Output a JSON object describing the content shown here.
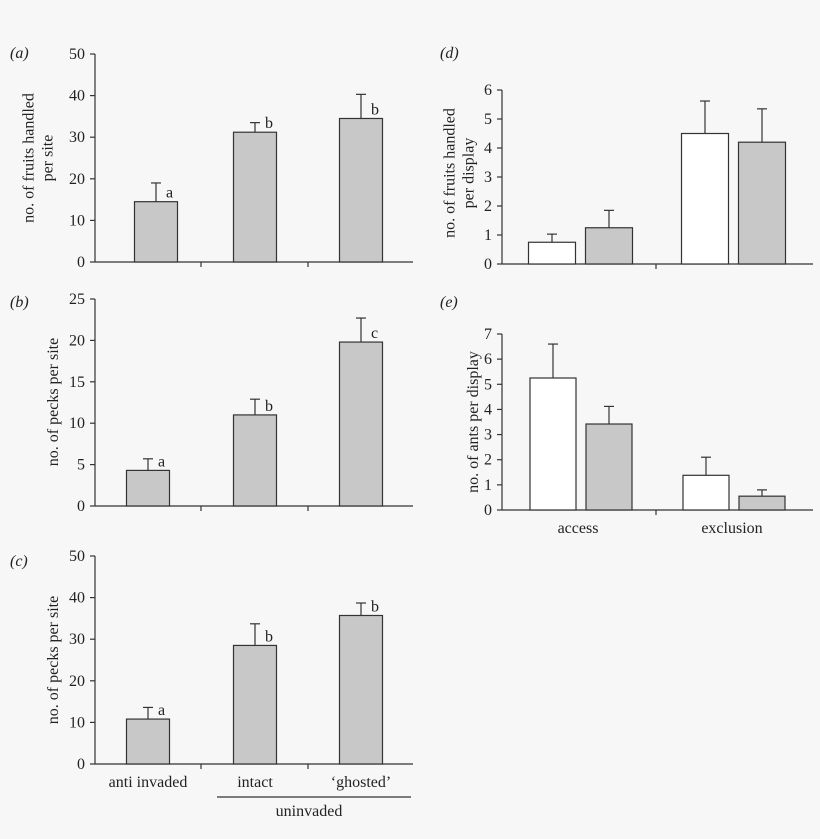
{
  "chart_data": [
    {
      "panel": "(a)",
      "type": "bar",
      "ylabel_lines": [
        "no. of fruits handled",
        "per site"
      ],
      "ylim": [
        0,
        50
      ],
      "yticks": [
        0,
        10,
        20,
        30,
        40,
        50
      ],
      "categories": [
        "anti invaded",
        "intact",
        "‘ghosted’"
      ],
      "series": [
        {
          "name": "sites",
          "fill": "#c8c8c8",
          "values": [
            14.5,
            31.2,
            34.5
          ],
          "errors": [
            4.5,
            2.3,
            5.8
          ],
          "letters": [
            "a",
            "b",
            "b"
          ]
        }
      ]
    },
    {
      "panel": "(b)",
      "type": "bar",
      "ylabel_lines": [
        "no. of pecks per site"
      ],
      "ylim": [
        0,
        25
      ],
      "yticks": [
        0,
        5,
        10,
        15,
        20,
        25
      ],
      "categories": [
        "anti invaded",
        "intact",
        "‘ghosted’"
      ],
      "series": [
        {
          "name": "sites",
          "fill": "#c8c8c8",
          "values": [
            4.3,
            11.0,
            19.8
          ],
          "errors": [
            1.4,
            1.9,
            2.9
          ],
          "letters": [
            "a",
            "b",
            "c"
          ]
        }
      ]
    },
    {
      "panel": "(c)",
      "type": "bar",
      "ylabel_lines": [
        "no. of pecks per site"
      ],
      "ylim": [
        0,
        50
      ],
      "yticks": [
        0,
        10,
        20,
        30,
        40,
        50
      ],
      "categories": [
        "anti invaded",
        "intact",
        "‘ghosted’"
      ],
      "series": [
        {
          "name": "sites",
          "fill": "#c8c8c8",
          "values": [
            10.8,
            28.5,
            35.7
          ],
          "errors": [
            2.8,
            5.2,
            3.0
          ],
          "letters": [
            "a",
            "b",
            "b"
          ]
        }
      ],
      "xtick_labels": [
        "anti invaded",
        "intact",
        "‘ghosted’"
      ],
      "group_label": "uninvaded"
    },
    {
      "panel": "(d)",
      "type": "bar",
      "ylabel_lines": [
        "no. of fruits handled",
        "per display"
      ],
      "ylim": [
        0,
        6
      ],
      "yticks": [
        0,
        1,
        2,
        3,
        4,
        5,
        6
      ],
      "categories": [
        "access",
        "exclusion"
      ],
      "series": [
        {
          "name": "white",
          "fill": "#ffffff",
          "values": [
            0.75,
            4.5
          ],
          "errors": [
            0.28,
            1.12
          ]
        },
        {
          "name": "grey",
          "fill": "#c8c8c8",
          "values": [
            1.25,
            4.2
          ],
          "errors": [
            0.6,
            1.15
          ]
        }
      ]
    },
    {
      "panel": "(e)",
      "type": "bar",
      "ylabel_lines": [
        "no. of ants per display"
      ],
      "ylim": [
        0,
        7
      ],
      "yticks": [
        0,
        1,
        2,
        3,
        4,
        5,
        6,
        7
      ],
      "categories": [
        "access",
        "exclusion"
      ],
      "series": [
        {
          "name": "white",
          "fill": "#ffffff",
          "values": [
            5.25,
            1.38
          ],
          "errors": [
            1.35,
            0.72
          ]
        },
        {
          "name": "grey",
          "fill": "#c8c8c8",
          "values": [
            3.42,
            0.55
          ],
          "errors": [
            0.7,
            0.25
          ]
        }
      ],
      "xtick_labels": [
        "access",
        "exclusion"
      ]
    }
  ]
}
